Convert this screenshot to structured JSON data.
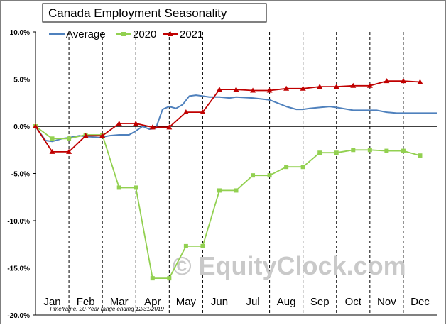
{
  "chart_data": {
    "type": "line",
    "title": "Canada Employment Seasonality",
    "footnote": "Timeframe: 20-Year range ending 12/31/2019",
    "watermark": "© EquityClock.com",
    "xlabel": "",
    "ylabel": "",
    "ylim": [
      -20,
      10
    ],
    "yticks": [
      10,
      5,
      0,
      -5,
      -10,
      -15,
      -20
    ],
    "ytick_labels": [
      "10.0%",
      "5.0%",
      "0.0%",
      "-5.0%",
      "-10.0%",
      "-15.0%",
      "-20.0%"
    ],
    "months": [
      "Jan",
      "Feb",
      "Mar",
      "Apr",
      "May",
      "Jun",
      "Jul",
      "Aug",
      "Sep",
      "Oct",
      "Nov",
      "Dec"
    ],
    "month_start_x": [
      0,
      1,
      2,
      3,
      4,
      5,
      6,
      7,
      8,
      9,
      10,
      11,
      12
    ],
    "grid": "vertical dashed at month boundaries",
    "legend": "top-left",
    "series": [
      {
        "name": "Average",
        "color": "#4f81bd",
        "marker": "none",
        "x": [
          0,
          0.2,
          0.3,
          0.5,
          0.8,
          1.0,
          1.3,
          1.6,
          1.9,
          2.2,
          2.5,
          2.8,
          3.0,
          3.2,
          3.4,
          3.6,
          3.8,
          4.0,
          4.2,
          4.4,
          4.6,
          4.8,
          5.0,
          5.2,
          5.5,
          5.8,
          6.0,
          6.5,
          7.0,
          7.5,
          7.8,
          8.0,
          8.2,
          8.5,
          8.8,
          9.0,
          9.5,
          9.8,
          10.2,
          10.5,
          10.8,
          11.2,
          11.5,
          12.0
        ],
        "values": [
          0.0,
          -1.0,
          -1.5,
          -1.6,
          -1.3,
          -1.2,
          -1.0,
          -1.1,
          -1.2,
          -1.0,
          -0.9,
          -0.9,
          -0.5,
          0.0,
          -0.3,
          -0.2,
          1.8,
          2.1,
          1.9,
          2.3,
          3.2,
          3.3,
          3.2,
          3.1,
          3.1,
          3.0,
          3.1,
          3.0,
          2.8,
          2.1,
          1.8,
          1.8,
          1.9,
          2.0,
          2.1,
          2.0,
          1.7,
          1.7,
          1.7,
          1.5,
          1.4,
          1.4,
          1.4,
          1.4
        ]
      },
      {
        "name": "2020",
        "color": "#92d050",
        "marker": "square",
        "x": [
          0,
          0.5,
          1.0,
          1.5,
          2.0,
          2.5,
          3.0,
          3.5,
          4.0,
          4.5,
          5.0,
          5.5,
          6.0,
          6.5,
          7.0,
          7.5,
          8.0,
          8.5,
          9.0,
          9.5,
          10.0,
          10.5,
          11.0,
          11.5
        ],
        "values": [
          0.0,
          -1.3,
          -1.3,
          -0.9,
          -0.9,
          -6.5,
          -6.5,
          -16.1,
          -16.1,
          -12.7,
          -12.7,
          -6.8,
          -6.8,
          -5.2,
          -5.2,
          -4.3,
          -4.3,
          -2.8,
          -2.8,
          -2.5,
          -2.5,
          -2.6,
          -2.6,
          -3.1
        ]
      },
      {
        "name": "2021",
        "color": "#c00000",
        "marker": "triangle",
        "x": [
          0,
          0.5,
          1.0,
          1.5,
          2.0,
          2.5,
          3.0,
          3.5,
          4.0,
          4.5,
          5.0,
          5.5,
          6.0,
          6.5,
          7.0,
          7.5,
          8.0,
          8.5,
          9.0,
          9.5,
          10.0,
          10.5,
          11.0,
          11.5
        ],
        "values": [
          0.0,
          -2.7,
          -2.7,
          -1.0,
          -1.0,
          0.3,
          0.3,
          -0.1,
          -0.1,
          1.5,
          1.5,
          3.9,
          3.9,
          3.8,
          3.8,
          4.0,
          4.0,
          4.2,
          4.2,
          4.3,
          4.3,
          4.8,
          4.8,
          4.7
        ]
      }
    ]
  }
}
